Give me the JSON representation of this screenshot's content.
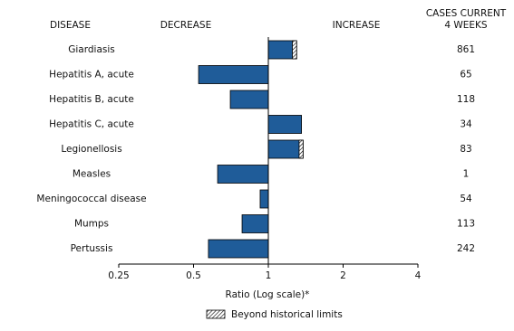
{
  "chart_data": {
    "type": "bar",
    "orientation": "horizontal",
    "xscale": "log",
    "category_header": "DISEASE",
    "decrease_label": "DECREASE",
    "increase_label": "INCREASE",
    "cases_header": [
      "CASES CURRENT",
      "4 WEEKS"
    ],
    "categories": [
      "Giardiasis",
      "Hepatitis A, acute",
      "Hepatitis B, acute",
      "Hepatitis C, acute",
      "Legionellosis",
      "Measles",
      "Meningococcal disease",
      "Mumps",
      "Pertussis"
    ],
    "values": [
      1.3,
      0.524,
      0.703,
      1.36,
      1.38,
      0.625,
      0.927,
      0.784,
      0.574
    ],
    "historical_limits": [
      1.25,
      null,
      null,
      null,
      1.33,
      null,
      null,
      null,
      null
    ],
    "cases": [
      861,
      65,
      118,
      34,
      83,
      1,
      54,
      113,
      242
    ],
    "color": "#1f5c99",
    "xlim": [
      0.25,
      4
    ],
    "xticks": [
      0.25,
      0.5,
      1,
      2,
      4
    ],
    "baseline": 1,
    "xlabel": "Ratio (Log scale)*",
    "legend_label": "Beyond historical limits"
  }
}
